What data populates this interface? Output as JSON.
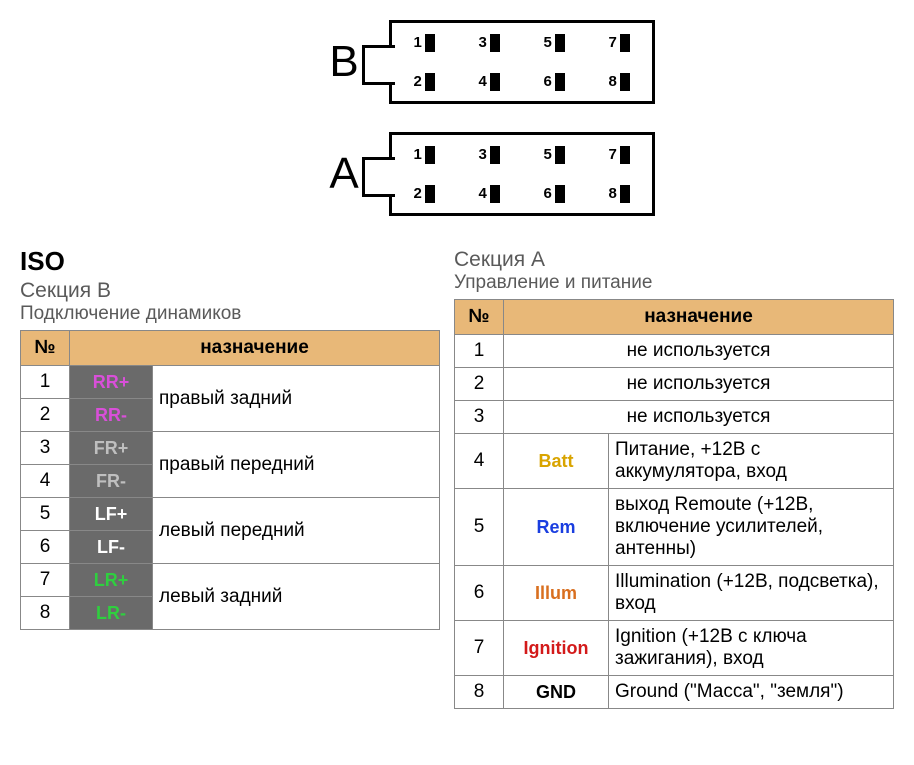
{
  "connectors": {
    "B": {
      "label": "B",
      "pins": [
        1,
        3,
        5,
        7,
        2,
        4,
        6,
        8
      ]
    },
    "A": {
      "label": "A",
      "pins": [
        1,
        3,
        5,
        7,
        2,
        4,
        6,
        8
      ]
    }
  },
  "sectionB": {
    "iso": "ISO",
    "title": "Секция В",
    "subtitle": "Подключение динамиков",
    "header_num": "№",
    "header_desc": "назначение",
    "rows": [
      {
        "num": "1",
        "code": "RR+",
        "code_color": "#d94fd9",
        "desc": "правый задний",
        "merge": true
      },
      {
        "num": "2",
        "code": "RR-",
        "code_color": "#d94fd9"
      },
      {
        "num": "3",
        "code": "FR+",
        "code_color": "#bfbfbf",
        "desc": "правый передний",
        "merge": true
      },
      {
        "num": "4",
        "code": "FR-",
        "code_color": "#bfbfbf"
      },
      {
        "num": "5",
        "code": "LF+",
        "code_color": "#ffffff",
        "desc": "левый передний",
        "merge": true
      },
      {
        "num": "6",
        "code": "LF-",
        "code_color": "#ffffff"
      },
      {
        "num": "7",
        "code": "LR+",
        "code_color": "#2fcf3f",
        "desc": "левый задний",
        "merge": true
      },
      {
        "num": "8",
        "code": "LR-",
        "code_color": "#2fcf3f"
      }
    ]
  },
  "sectionA": {
    "title": "Секция А",
    "subtitle": "Управление и питание",
    "header_num": "№",
    "header_desc": "назначение",
    "rows": [
      {
        "num": "1",
        "code": "",
        "desc": "не используется",
        "span": true
      },
      {
        "num": "2",
        "code": "",
        "desc": "не используется",
        "span": true
      },
      {
        "num": "3",
        "code": "",
        "desc": "не используется",
        "span": true
      },
      {
        "num": "4",
        "code": "Batt",
        "code_color": "#d9a400",
        "desc": "Питание, +12В с аккумулятора, вход"
      },
      {
        "num": "5",
        "code": "Rem",
        "code_color": "#1a3ee0",
        "desc": "выход Remoute (+12В, включение усилителей, антенны)"
      },
      {
        "num": "6",
        "code": "Illum",
        "code_color": "#d96f1f",
        "desc": "Illumination (+12В, подсветка), вход"
      },
      {
        "num": "7",
        "code": "Ignition",
        "code_color": "#d31a1a",
        "desc": "Ignition (+12В с ключа зажигания), вход"
      },
      {
        "num": "8",
        "code": "GND",
        "code_color": "#000000",
        "desc": "Ground (\"Масса\", \"земля\")"
      }
    ]
  },
  "styling": {
    "header_bg": "#e8b878",
    "code_bg": "#6a6a6a",
    "border_color": "#888888",
    "text_gray": "#5a5a5a",
    "body_bg": "#ffffff",
    "fonts": {
      "label": 44,
      "iso": 26,
      "title": 21,
      "body": 19
    }
  }
}
